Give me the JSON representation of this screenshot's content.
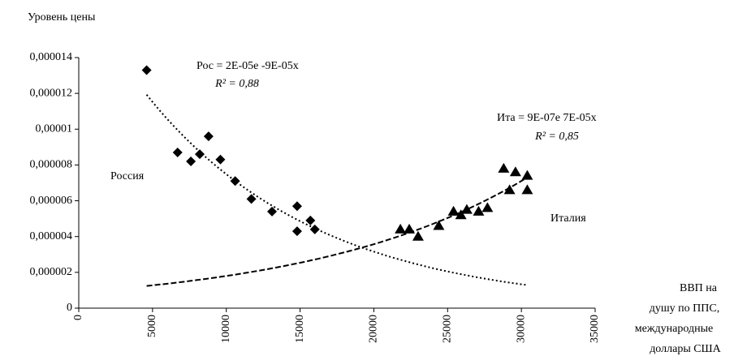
{
  "chart_data": {
    "type": "scatter",
    "y_label": "Уровень цены",
    "x_label": [
      "ВВП на",
      "душу по ППС,",
      "международные",
      "доллары США"
    ],
    "xlim": [
      0,
      35000
    ],
    "xticks": [
      0,
      5000,
      10000,
      15000,
      20000,
      25000,
      30000,
      35000
    ],
    "ylim": [
      0,
      1.4e-05
    ],
    "yticks": [
      0,
      {
        "value": 2e-06,
        "label": "0,000002"
      },
      {
        "value": 4e-06,
        "label": "0,000004"
      },
      {
        "value": 6e-06,
        "label": "0,000006"
      },
      {
        "value": 8e-06,
        "label": "0,000008"
      },
      {
        "value": 1e-05,
        "label": "0,00001"
      },
      {
        "value": 1.2e-05,
        "label": "0,000012"
      },
      {
        "value": 1.4e-05,
        "label": "0,000014"
      }
    ],
    "series": [
      {
        "name": "Россия",
        "color": "#000000",
        "marker": "diamond",
        "trendline": "exponential",
        "equation": "Рос = 2E-05e -9E-05x",
        "r2": "R² = 0,88",
        "x": [
          4600,
          6700,
          7600,
          8200,
          8800,
          9600,
          10600,
          11700,
          13100,
          14800,
          14800,
          15700,
          16000
        ],
        "values": [
          1.33e-05,
          8.7e-06,
          8.2e-06,
          8.6e-06,
          9.6e-06,
          8.3e-06,
          7.1e-06,
          6.1e-06,
          5.4e-06,
          5.7e-06,
          4.3e-06,
          4.9e-06,
          4.4e-06
        ]
      },
      {
        "name": "Италия",
        "color": "#000000",
        "marker": "triangle",
        "trendline": "exponential",
        "equation": "Ита = 9E-07e 7E-05x",
        "r2": "R² = 0,85",
        "x": [
          21800,
          22400,
          23000,
          24400,
          25400,
          25900,
          26300,
          27100,
          27700,
          28800,
          29200,
          29600,
          30400,
          30400
        ],
        "values": [
          4.4e-06,
          4.4e-06,
          4e-06,
          4.6e-06,
          5.4e-06,
          5.2e-06,
          5.5e-06,
          5.4e-06,
          5.6e-06,
          7.8e-06,
          6.6e-06,
          7.6e-06,
          7.4e-06,
          6.6e-06
        ]
      }
    ]
  }
}
